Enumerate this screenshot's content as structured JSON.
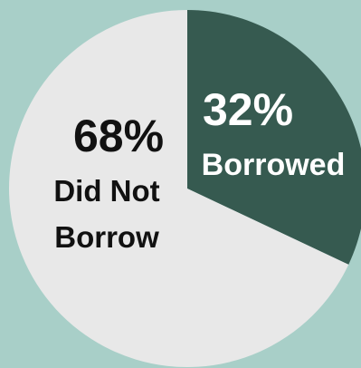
{
  "chart_data": {
    "type": "pie",
    "slices": [
      {
        "value": 32,
        "percent_label": "32%",
        "label": "Borrowed",
        "label_lines": [
          "Borrowed"
        ],
        "color": "#365a50",
        "text_color": "#ffffff"
      },
      {
        "value": 68,
        "percent_label": "68%",
        "label": "Did Not Borrow",
        "label_lines": [
          "Did Not",
          "Borrow"
        ],
        "color": "#e8e8e8",
        "text_color": "#111111"
      }
    ]
  },
  "colors": {
    "background": "#a8cfc8"
  }
}
